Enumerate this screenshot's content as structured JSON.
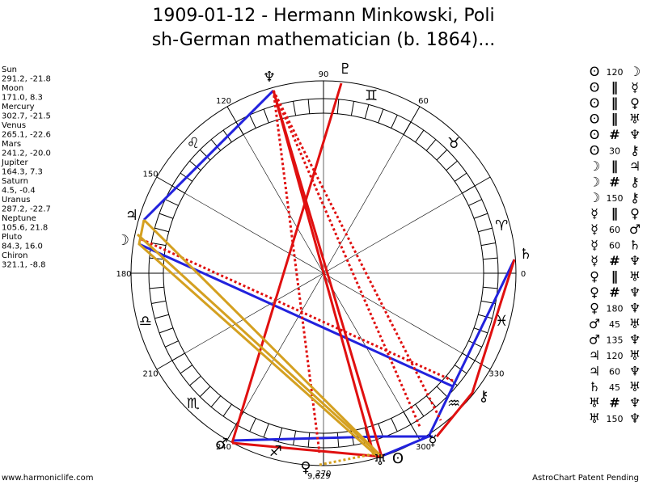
{
  "title": [
    "1909-01-12 - Hermann Minkowski, Poli",
    "sh-German mathematician (b. 1864)..."
  ],
  "planets": [
    {
      "name": "Sun",
      "position": "291.2, -21.8",
      "glyph": "ʘ"
    },
    {
      "name": "Moon",
      "position": "171.0, 8.3",
      "glyph": "☽"
    },
    {
      "name": "Mercury",
      "position": "302.7, -21.5",
      "glyph": "☿"
    },
    {
      "name": "Venus",
      "position": "265.1, -22.6",
      "glyph": "♀"
    },
    {
      "name": "Mars",
      "position": "241.2, -20.0",
      "glyph": "♂"
    },
    {
      "name": "Jupiter",
      "position": "164.3, 7.3",
      "glyph": "♃"
    },
    {
      "name": "Saturn",
      "position": "4.5, -0.4",
      "glyph": "♄"
    },
    {
      "name": "Uranus",
      "position": "287.2, -22.7",
      "glyph": "♅"
    },
    {
      "name": "Neptune",
      "position": "105.6, 21.8",
      "glyph": "♆"
    },
    {
      "name": "Pluto",
      "position": "84.3, 16.0",
      "glyph": "♇"
    },
    {
      "name": "Chiron",
      "position": "321.1, -8.8",
      "glyph": "⚷"
    }
  ],
  "degree_labels": [
    "90",
    "60",
    "120",
    "150",
    "180",
    "210",
    "240",
    "270",
    "300",
    "330",
    "0"
  ],
  "signs": [
    "♈",
    "♉",
    "♊",
    "♌",
    "♎",
    "♏",
    "♐",
    "♒",
    "♓"
  ],
  "aspects": [
    {
      "from": "ʘ",
      "type": "120",
      "to": "☽"
    },
    {
      "from": "ʘ",
      "type": "∥",
      "to": "☿"
    },
    {
      "from": "ʘ",
      "type": "∥",
      "to": "♀"
    },
    {
      "from": "ʘ",
      "type": "∥",
      "to": "♅"
    },
    {
      "from": "ʘ",
      "type": "#",
      "to": "♆"
    },
    {
      "from": "ʘ",
      "type": "30",
      "to": "⚷"
    },
    {
      "from": "☽",
      "type": "∥",
      "to": "♃"
    },
    {
      "from": "☽",
      "type": "#",
      "to": "⚷"
    },
    {
      "from": "☽",
      "type": "150",
      "to": "⚷"
    },
    {
      "from": "☿",
      "type": "∥",
      "to": "♀"
    },
    {
      "from": "☿",
      "type": "60",
      "to": "♂"
    },
    {
      "from": "☿",
      "type": "60",
      "to": "♄"
    },
    {
      "from": "☿",
      "type": "#",
      "to": "♆"
    },
    {
      "from": "♀",
      "type": "∥",
      "to": "♅"
    },
    {
      "from": "♀",
      "type": "#",
      "to": "♆"
    },
    {
      "from": "♀",
      "type": "180",
      "to": "♆"
    },
    {
      "from": "♂",
      "type": "45",
      "to": "♅"
    },
    {
      "from": "♂",
      "type": "135",
      "to": "♆"
    },
    {
      "from": "♃",
      "type": "120",
      "to": "♅"
    },
    {
      "from": "♃",
      "type": "60",
      "to": "♆"
    },
    {
      "from": "♄",
      "type": "45",
      "to": "♅"
    },
    {
      "from": "♅",
      "type": "#",
      "to": "♆"
    },
    {
      "from": "♅",
      "type": "150",
      "to": "♆"
    }
  ],
  "note": "9,629",
  "footer": {
    "left": "www.harmoniclife.com",
    "right": "AstroChart Patent Pending"
  }
}
